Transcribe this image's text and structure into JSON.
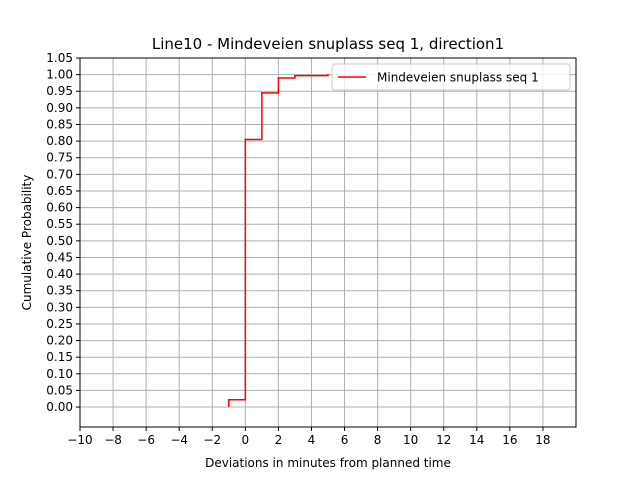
{
  "chart_data": {
    "type": "line",
    "title": "Line10 - Mindeveien snuplass seq 1, direction1",
    "xlabel": "Deviations in minutes from planned time",
    "ylabel": "Cumulative Probability",
    "xlim": [
      -10,
      20
    ],
    "ylim": [
      -0.06,
      1.05
    ],
    "x_ticks": [
      -10,
      -8,
      -6,
      -4,
      -2,
      0,
      2,
      4,
      6,
      8,
      10,
      12,
      14,
      16,
      18
    ],
    "x_tick_labels": [
      "−10",
      "−8",
      "−6",
      "−4",
      "−2",
      "0",
      "2",
      "4",
      "6",
      "8",
      "10",
      "12",
      "14",
      "16",
      "18"
    ],
    "y_ticks": [
      0.0,
      0.05,
      0.1,
      0.15,
      0.2,
      0.25,
      0.3,
      0.35,
      0.4,
      0.45,
      0.5,
      0.55,
      0.6,
      0.65,
      0.7,
      0.75,
      0.8,
      0.85,
      0.9,
      0.95,
      1.0,
      1.05
    ],
    "y_tick_labels": [
      "0.00",
      "0.05",
      "0.10",
      "0.15",
      "0.20",
      "0.25",
      "0.30",
      "0.35",
      "0.40",
      "0.45",
      "0.50",
      "0.55",
      "0.60",
      "0.65",
      "0.70",
      "0.75",
      "0.80",
      "0.85",
      "0.90",
      "0.95",
      "1.00",
      "1.05"
    ],
    "grid": true,
    "legend_position": "top-right",
    "series": [
      {
        "name": "Mindeveien snuplass seq 1",
        "color": "#ff0000",
        "step": "post",
        "x": [
          -1,
          0,
          1,
          2,
          3,
          5
        ],
        "y": [
          0.022,
          0.805,
          0.945,
          0.99,
          0.997,
          1.0
        ]
      }
    ]
  }
}
